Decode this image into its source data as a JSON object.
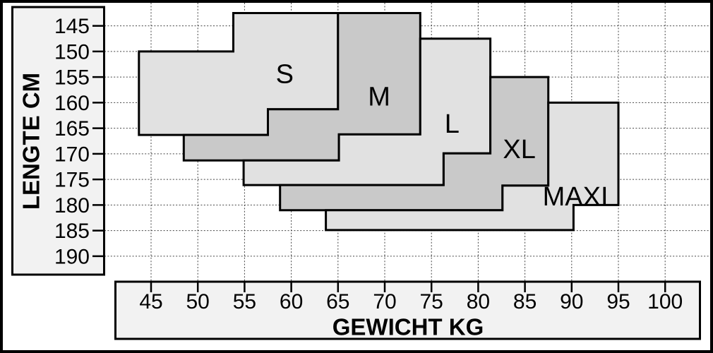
{
  "chart_data": {
    "type": "area",
    "title": "",
    "xlabel": "GEWICHT KG",
    "ylabel": "LENGTE CM",
    "x_ticks": [
      45,
      50,
      55,
      60,
      65,
      70,
      75,
      80,
      85,
      90,
      95,
      100
    ],
    "y_ticks": [
      145,
      150,
      155,
      160,
      165,
      170,
      175,
      180,
      185,
      190
    ],
    "xlim": [
      40,
      104.8
    ],
    "ylim": [
      140.5,
      195
    ],
    "y_axis_direction": "increases-downward",
    "grid": "dashed",
    "legend_position": "none",
    "colors": {
      "light": "#e1e1e1",
      "dark": "#c9c9c9",
      "axis_box": "#f2f2f2",
      "grid": "#444444",
      "border": "#000000"
    },
    "regions": [
      {
        "label": "S",
        "shade": "light",
        "label_at": [
          59.3,
          154.5
        ],
        "polygon": [
          [
            53.8,
            142.5
          ],
          [
            65,
            142.5
          ],
          [
            65,
            161.3
          ],
          [
            57.5,
            161.3
          ],
          [
            57.5,
            166.3
          ],
          [
            43.7,
            166.3
          ],
          [
            43.7,
            150
          ],
          [
            53.8,
            150
          ]
        ]
      },
      {
        "label": "M",
        "shade": "dark",
        "label_at": [
          69.4,
          158.9
        ],
        "polygon": [
          [
            65,
            142.5
          ],
          [
            73.8,
            142.5
          ],
          [
            73.8,
            166.2
          ],
          [
            65.1,
            166.2
          ],
          [
            65.1,
            171.3
          ],
          [
            48.5,
            171.3
          ],
          [
            48.5,
            166.3
          ],
          [
            57.5,
            166.3
          ],
          [
            57.5,
            161.3
          ],
          [
            65,
            161.3
          ]
        ]
      },
      {
        "label": "L",
        "shade": "light",
        "label_at": [
          77.2,
          164.2
        ],
        "polygon": [
          [
            73.8,
            147.5
          ],
          [
            81.3,
            147.5
          ],
          [
            81.3,
            169.9
          ],
          [
            76.3,
            169.9
          ],
          [
            76.3,
            176.1
          ],
          [
            54.9,
            176.1
          ],
          [
            54.9,
            171.3
          ],
          [
            65.1,
            171.3
          ],
          [
            65.1,
            166.2
          ],
          [
            73.8,
            166.2
          ]
        ]
      },
      {
        "label": "XL",
        "shade": "dark",
        "label_at": [
          84.4,
          169.2
        ],
        "polygon": [
          [
            81.3,
            155
          ],
          [
            87.5,
            155
          ],
          [
            87.5,
            176.2
          ],
          [
            82.6,
            176.2
          ],
          [
            82.6,
            181
          ],
          [
            58.8,
            181
          ],
          [
            58.8,
            176.1
          ],
          [
            76.3,
            176.1
          ],
          [
            76.3,
            169.9
          ],
          [
            81.3,
            169.9
          ]
        ]
      },
      {
        "label": "MAXI",
        "shade": "light",
        "label_at": [
          90.4,
          178.4
        ],
        "polygon": [
          [
            87.5,
            160
          ],
          [
            95,
            160
          ],
          [
            95,
            180
          ],
          [
            90.2,
            180
          ],
          [
            90.2,
            184.9
          ],
          [
            63.7,
            184.9
          ],
          [
            63.7,
            181
          ],
          [
            82.6,
            181
          ],
          [
            82.6,
            176.2
          ],
          [
            87.5,
            176.2
          ]
        ]
      }
    ]
  }
}
